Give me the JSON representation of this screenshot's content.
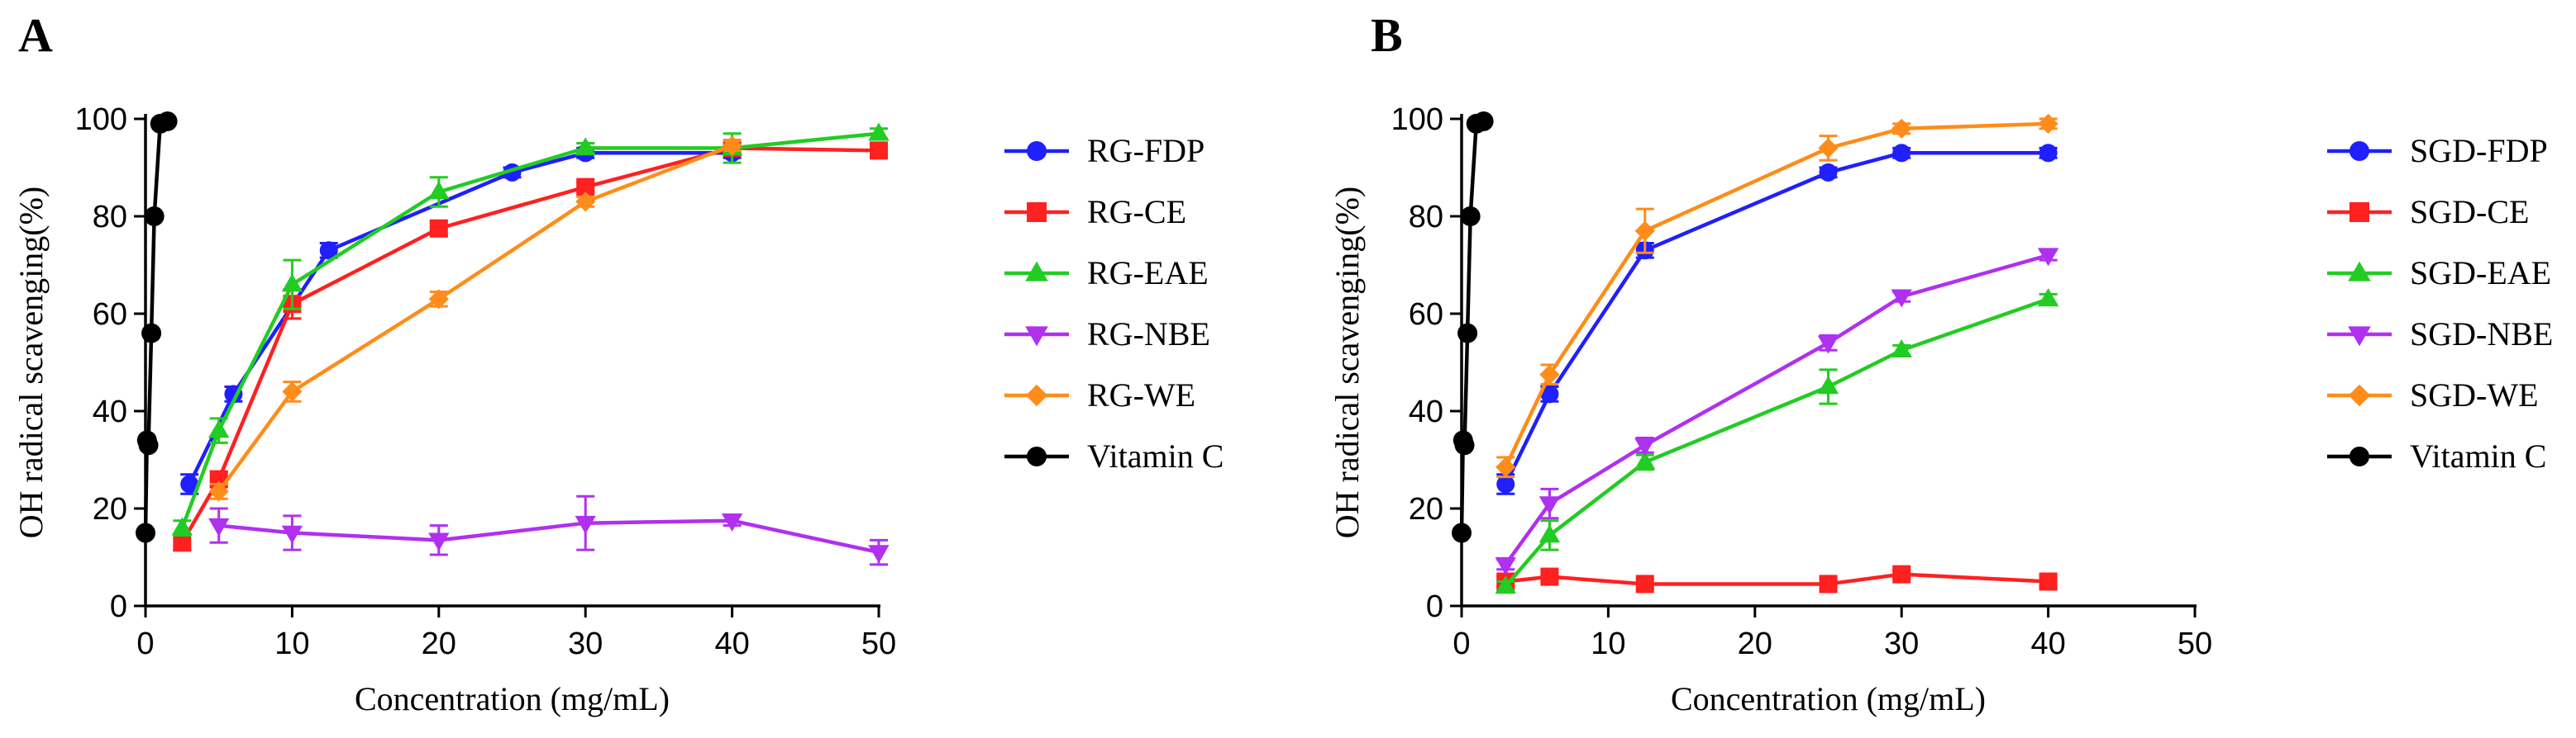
{
  "chart_data": [
    {
      "panel": "A",
      "type": "line",
      "xlabel": "Concentration (mg/mL)",
      "ylabel": "OH radical scavenging(%)",
      "xlim": [
        0,
        50
      ],
      "ylim": [
        0,
        100
      ],
      "xticks": [
        0,
        10,
        20,
        30,
        40,
        50
      ],
      "yticks": [
        0,
        20,
        40,
        60,
        80,
        100
      ],
      "legend_position": "right",
      "series": [
        {
          "name": "RG-FDP",
          "color": "#1f1fff",
          "marker": "circle",
          "x": [
            3,
            6,
            12.5,
            25,
            30,
            40
          ],
          "y": [
            25,
            43.5,
            73,
            89,
            93,
            93
          ],
          "err": [
            2,
            1.5,
            1.5,
            1,
            1,
            1
          ]
        },
        {
          "name": "RG-CE",
          "color": "#ff2020",
          "marker": "square",
          "x": [
            2.5,
            5,
            10,
            20,
            30,
            40,
            50
          ],
          "y": [
            13,
            26,
            62,
            77.5,
            86,
            94,
            93.5
          ],
          "err": [
            1.5,
            1.5,
            3,
            1.5,
            1,
            1,
            1
          ]
        },
        {
          "name": "RG-EAE",
          "color": "#22cc22",
          "marker": "triangle-up",
          "x": [
            2.5,
            5,
            10,
            20,
            30,
            40,
            50
          ],
          "y": [
            16,
            36,
            66,
            85,
            94,
            94,
            97
          ],
          "err": [
            1.5,
            2.5,
            5,
            3,
            1,
            3,
            1
          ]
        },
        {
          "name": "RG-NBE",
          "color": "#b030f0",
          "marker": "triangle-down",
          "x": [
            5,
            10,
            20,
            30,
            40,
            50
          ],
          "y": [
            16.5,
            15,
            13.5,
            17,
            17.5,
            11
          ],
          "err": [
            3.5,
            3.5,
            3,
            5.5,
            1,
            2.5
          ]
        },
        {
          "name": "RG-WE",
          "color": "#ff8c1a",
          "marker": "diamond",
          "x": [
            5,
            10,
            20,
            30,
            40
          ],
          "y": [
            23.5,
            44,
            63,
            83,
            94.5
          ],
          "err": [
            1.5,
            2,
            1.5,
            1,
            1
          ]
        },
        {
          "name": "Vitamin C",
          "color": "#000000",
          "marker": "circle",
          "x": [
            0,
            0.1,
            0.2,
            0.4,
            0.6,
            1.0,
            1.5
          ],
          "y": [
            15,
            34,
            33,
            56,
            80,
            99,
            99.5
          ],
          "err": [
            0,
            0,
            0,
            0,
            0,
            0,
            0
          ]
        }
      ]
    },
    {
      "panel": "B",
      "type": "line",
      "xlabel": "Concentration (mg/mL)",
      "ylabel": "OH radical scavenging(%)",
      "xlim": [
        0,
        50
      ],
      "ylim": [
        0,
        100
      ],
      "xticks": [
        0,
        10,
        20,
        30,
        40,
        50
      ],
      "yticks": [
        0,
        20,
        40,
        60,
        80,
        100
      ],
      "legend_position": "right",
      "series": [
        {
          "name": "SGD-FDP",
          "color": "#1f1fff",
          "marker": "circle",
          "x": [
            3,
            6,
            12.5,
            25,
            30,
            40
          ],
          "y": [
            25,
            43.5,
            73,
            89,
            93,
            93
          ],
          "err": [
            2,
            1.5,
            1.5,
            1,
            1,
            1
          ]
        },
        {
          "name": "SGD-CE",
          "color": "#ff2020",
          "marker": "square",
          "x": [
            3,
            6,
            12.5,
            25,
            30,
            40
          ],
          "y": [
            5,
            6,
            4.5,
            4.5,
            6.5,
            5
          ],
          "err": [
            1,
            1,
            1,
            1,
            1,
            1
          ]
        },
        {
          "name": "SGD-EAE",
          "color": "#22cc22",
          "marker": "triangle-up",
          "x": [
            3,
            6,
            12.5,
            25,
            30,
            40
          ],
          "y": [
            4,
            14.5,
            29.5,
            45,
            52.5,
            63
          ],
          "err": [
            1,
            3,
            1.5,
            3.5,
            1,
            1
          ]
        },
        {
          "name": "SGD-NBE",
          "color": "#b030f0",
          "marker": "triangle-down",
          "x": [
            3,
            6,
            12.5,
            25,
            30,
            40
          ],
          "y": [
            8.5,
            21,
            33,
            54,
            63.5,
            72
          ],
          "err": [
            1,
            3,
            1.5,
            1.5,
            1,
            1
          ]
        },
        {
          "name": "SGD-WE",
          "color": "#ff8c1a",
          "marker": "diamond",
          "x": [
            3,
            6,
            12.5,
            25,
            30,
            40
          ],
          "y": [
            28.5,
            47.5,
            77,
            94,
            98,
            99
          ],
          "err": [
            2,
            2,
            4.5,
            2.5,
            1,
            1
          ]
        },
        {
          "name": "Vitamin C",
          "color": "#000000",
          "marker": "circle",
          "x": [
            0,
            0.1,
            0.2,
            0.4,
            0.6,
            1.0,
            1.5
          ],
          "y": [
            15,
            34,
            33,
            56,
            80,
            99,
            99.5
          ],
          "err": [
            0,
            0,
            0,
            0,
            0,
            0,
            0
          ]
        }
      ]
    }
  ]
}
